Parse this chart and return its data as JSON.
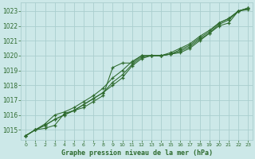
{
  "x": [
    0,
    1,
    2,
    3,
    4,
    5,
    6,
    7,
    8,
    9,
    10,
    11,
    12,
    13,
    14,
    15,
    16,
    17,
    18,
    19,
    20,
    21,
    22,
    23
  ],
  "line1": [
    1014.6,
    1015.0,
    1015.1,
    1015.3,
    1016.1,
    1016.3,
    1016.5,
    1016.9,
    1017.3,
    1019.2,
    1019.5,
    1019.5,
    1020.0,
    1020.0,
    1020.0,
    1020.1,
    1020.2,
    1020.5,
    1021.0,
    1021.5,
    1022.0,
    1022.2,
    1023.0,
    1023.1
  ],
  "line2": [
    1014.6,
    1015.0,
    1015.3,
    1015.7,
    1016.0,
    1016.3,
    1016.7,
    1017.1,
    1017.5,
    1018.0,
    1018.5,
    1019.3,
    1019.8,
    1020.0,
    1020.0,
    1020.1,
    1020.4,
    1020.7,
    1021.2,
    1021.6,
    1022.2,
    1022.5,
    1023.0,
    1023.2
  ],
  "line3": [
    1014.6,
    1015.0,
    1015.3,
    1015.7,
    1016.0,
    1016.3,
    1016.7,
    1017.1,
    1017.5,
    1018.2,
    1018.7,
    1019.4,
    1019.9,
    1020.0,
    1020.0,
    1020.1,
    1020.3,
    1020.6,
    1021.1,
    1021.5,
    1022.1,
    1022.4,
    1023.0,
    1023.2
  ],
  "line4": [
    1014.6,
    1015.0,
    1015.4,
    1016.0,
    1016.2,
    1016.5,
    1016.9,
    1017.3,
    1017.8,
    1018.5,
    1019.0,
    1019.6,
    1020.0,
    1020.0,
    1020.0,
    1020.2,
    1020.5,
    1020.8,
    1021.3,
    1021.7,
    1022.2,
    1022.5,
    1023.0,
    1023.2
  ],
  "bg_color": "#cce8e8",
  "grid_color": "#aacece",
  "line_color": "#2d6a2d",
  "ylabel_values": [
    1015,
    1016,
    1017,
    1018,
    1019,
    1020,
    1021,
    1022,
    1023
  ],
  "xlabel": "Graphe pression niveau de la mer (hPa)",
  "ylim_min": 1014.3,
  "ylim_max": 1023.6,
  "xlim_min": -0.5,
  "xlim_max": 23.5,
  "fig_width": 3.2,
  "fig_height": 2.0,
  "dpi": 100
}
